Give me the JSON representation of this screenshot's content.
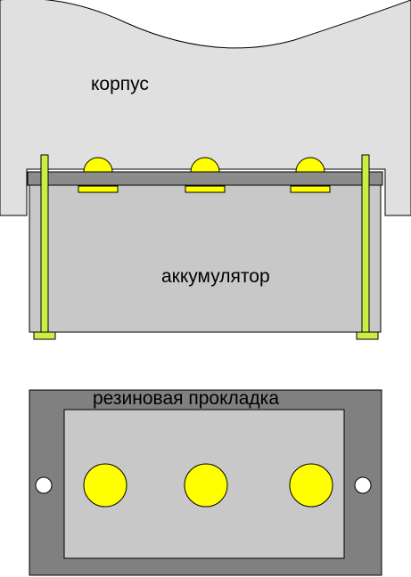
{
  "labels": {
    "housing": "корпус",
    "battery": "аккумулятор",
    "gasket": "резиновая прокладка"
  },
  "colors": {
    "housing_fill": "#e0e0e0",
    "battery_fill": "#c8c8c8",
    "frame_dark": "#8c8c8c",
    "gasket_dark": "#808080",
    "inner_light": "#c8c8c8",
    "contact_yellow": "#ffff00",
    "pin_green": "#ccee44",
    "outline": "#000000"
  },
  "icons": {
    "contact": "yellow-circle",
    "mount_hole": "white-circle"
  }
}
